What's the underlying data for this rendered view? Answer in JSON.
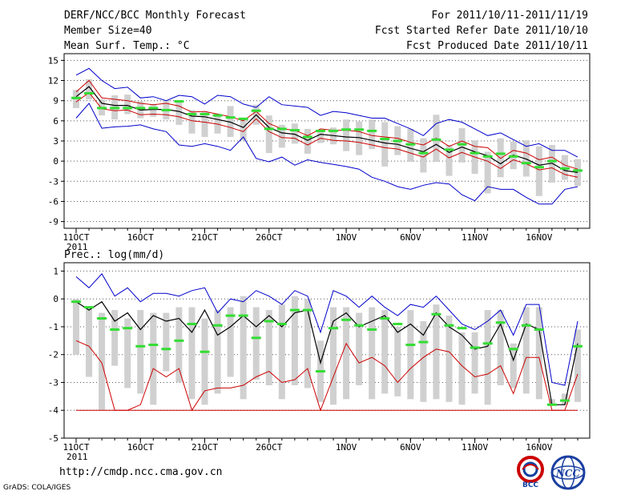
{
  "header": {
    "title": "DERF/NCC/BCC Monthly Forecast",
    "member_size": "Member Size=40",
    "period": "For 2011/10/11-2011/11/19",
    "start_date": "Fcst Started Refer Date 2011/10/10",
    "produced_date": "Fcst Produced Date 2011/10/11"
  },
  "footer": {
    "url": "http://cmdp.ncc.cma.gov.cn",
    "grads": "GrADS: COLA/IGES",
    "logo_left_text": "BCC",
    "logo_right_text": "NCC"
  },
  "colors": {
    "envelope": "#0000cc",
    "ensemble_mean": "#000000",
    "red_line": "#cc0000",
    "box": "#d0d0d0",
    "marker": "#33dd33",
    "grid": "#555555"
  },
  "chart_data": [
    {
      "type": "line",
      "title": "Mean Surf. Temp.: °C",
      "ylabel": "°C",
      "ylim": [
        -10,
        16
      ],
      "yticks": [
        15,
        12,
        9,
        6,
        3,
        0,
        -3,
        -6,
        -9
      ],
      "x_start_day": 1,
      "x_end_day": 40,
      "x_tick_labels": [
        {
          "day": 1,
          "label": "11OCT"
        },
        {
          "day": 6,
          "label": "16OCT"
        },
        {
          "day": 11,
          "label": "21OCT"
        },
        {
          "day": 16,
          "label": "26OCT"
        },
        {
          "day": 22,
          "label": "1NOV"
        },
        {
          "day": 27,
          "label": "6NOV"
        },
        {
          "day": 32,
          "label": "11NOV"
        },
        {
          "day": 37,
          "label": "16NOV"
        }
      ],
      "year_label": "2011",
      "series": [
        {
          "name": "max",
          "values": [
            12.8,
            13.8,
            12,
            10.8,
            11,
            9.4,
            9.6,
            9,
            9.8,
            9.6,
            8.5,
            9.8,
            9.6,
            8.5,
            8,
            9.6,
            8.4,
            8.2,
            8,
            6.8,
            7.4,
            7.2,
            6.8,
            6.4,
            6.4,
            5.6,
            4.8,
            3.8,
            5.6,
            6.2,
            5.8,
            4.8,
            3.8,
            4.2,
            3.2,
            2.2,
            2.6,
            1.6,
            1.6,
            0.6
          ]
        },
        {
          "name": "ens_mean_hi",
          "values": [
            10.3,
            12,
            9.4,
            9.2,
            9,
            8.6,
            8.4,
            8.6,
            8.2,
            7.3,
            7.4,
            7,
            6.6,
            6,
            7.4,
            5.6,
            4.8,
            4.6,
            3.8,
            4.8,
            4.6,
            4.6,
            4.4,
            3.8,
            3.6,
            3.4,
            2.8,
            2.4,
            3.4,
            2.2,
            3,
            2.2,
            2,
            0.4,
            1.6,
            1.2,
            0.2,
            0.6,
            -0.6,
            -1.2
          ]
        },
        {
          "name": "mean",
          "values": [
            9.6,
            11.1,
            8.6,
            8.3,
            8.3,
            7.6,
            7.7,
            7.7,
            7.4,
            6.7,
            6.6,
            6.2,
            5.8,
            5,
            6.9,
            5,
            4.2,
            4,
            3.1,
            4,
            3.8,
            3.6,
            3.5,
            3.1,
            2.7,
            2.5,
            1.9,
            1.4,
            2.5,
            1.3,
            2.1,
            1.4,
            0.8,
            -0.4,
            0.9,
            0.3,
            -0.6,
            -0.3,
            -1.4,
            -1.7
          ]
        },
        {
          "name": "ens_mean_lo",
          "values": [
            8.8,
            10.2,
            7.8,
            7.5,
            7.6,
            6.9,
            7,
            6.9,
            6.6,
            6,
            5.8,
            5.5,
            5,
            4.4,
            6.3,
            4.4,
            3.5,
            3.4,
            2.4,
            3.4,
            3.1,
            3,
            2.8,
            2.4,
            2,
            1.8,
            1.2,
            0.6,
            1.8,
            0.5,
            1.3,
            0.6,
            0,
            -1.1,
            0.2,
            -0.4,
            -1.3,
            -1,
            -2,
            -2.4
          ]
        },
        {
          "name": "min",
          "values": [
            6.4,
            8.6,
            4.9,
            5.1,
            5.2,
            5.4,
            4.8,
            4.4,
            2.4,
            2.2,
            2.6,
            2.2,
            1.6,
            3.6,
            0.4,
            -0.1,
            0.6,
            -0.6,
            0.2,
            -0.2,
            -0.5,
            -0.8,
            -1.2,
            -2.4,
            -3,
            -3.8,
            -4.2,
            -3.6,
            -3.2,
            -3.4,
            -5,
            -5.9,
            -3.8,
            -4.2,
            -4.2,
            -5.4,
            -6.4,
            -6.4,
            -4.2,
            -3.8
          ]
        }
      ],
      "boxes": [
        {
          "lo": 7.9,
          "hi": 10.6
        },
        {
          "lo": 9.2,
          "hi": 12.2
        },
        {
          "lo": 6.8,
          "hi": 9.2
        },
        {
          "lo": 6.2,
          "hi": 9.8
        },
        {
          "lo": 7,
          "hi": 9.9
        },
        {
          "lo": 6.4,
          "hi": 8.9
        },
        {
          "lo": 6.6,
          "hi": 8.5
        },
        {
          "lo": 6.2,
          "hi": 9.1
        },
        {
          "lo": 5.4,
          "hi": 8.9
        },
        {
          "lo": 4.1,
          "hi": 7.6
        },
        {
          "lo": 3.6,
          "hi": 7.4
        },
        {
          "lo": 4.1,
          "hi": 7.1
        },
        {
          "lo": 3.6,
          "hi": 8.2
        },
        {
          "lo": 3.1,
          "hi": 6.4
        },
        {
          "lo": 5.4,
          "hi": 8.4
        },
        {
          "lo": 1.2,
          "hi": 6.8
        },
        {
          "lo": 2,
          "hi": 5.4
        },
        {
          "lo": 2.6,
          "hi": 5.6
        },
        {
          "lo": 1.1,
          "hi": 4.8
        },
        {
          "lo": 2.7,
          "hi": 4.6
        },
        {
          "lo": 2.5,
          "hi": 5
        },
        {
          "lo": 1.5,
          "hi": 6.2
        },
        {
          "lo": 0.9,
          "hi": 5.9
        },
        {
          "lo": 1.8,
          "hi": 6.2
        },
        {
          "lo": -0.8,
          "hi": 5.8
        },
        {
          "lo": 0.9,
          "hi": 5.2
        },
        {
          "lo": -0.1,
          "hi": 4.8
        },
        {
          "lo": -1.7,
          "hi": 3.4
        },
        {
          "lo": -0.1,
          "hi": 6.9
        },
        {
          "lo": -2.2,
          "hi": 2.4
        },
        {
          "lo": -0.2,
          "hi": 4.9
        },
        {
          "lo": -1.9,
          "hi": 3.1
        },
        {
          "lo": -4.8,
          "hi": 1.4
        },
        {
          "lo": -2.4,
          "hi": 3.4
        },
        {
          "lo": -1.2,
          "hi": 2.9
        },
        {
          "lo": -2.3,
          "hi": 3.1
        },
        {
          "lo": -5.2,
          "hi": 2.2
        },
        {
          "lo": -3.2,
          "hi": 2.4
        },
        {
          "lo": -2.8,
          "hi": 0.9
        },
        {
          "lo": -3.7,
          "hi": 0.3
        }
      ],
      "markers": [
        9.4,
        10.1,
        7.9,
        7.9,
        7.9,
        7.9,
        7.9,
        7.6,
        8.9,
        7,
        7,
        6.8,
        6.5,
        6.3,
        7.5,
        4.8,
        4.8,
        4.6,
        3.6,
        4.5,
        4.5,
        4.7,
        4.7,
        4.5,
        3.3,
        3,
        2.5,
        1.2,
        3.2,
        1.7,
        2.5,
        1.2,
        0.7,
        1.1,
        0.7,
        -0.3,
        -0.9,
        0,
        -1.1,
        -1.4
      ]
    },
    {
      "type": "line",
      "title": "Prec.: log(mm/d)",
      "ylabel": "log(mm/d)",
      "ylim": [
        -5,
        1.3
      ],
      "yticks": [
        1,
        0,
        -1,
        -2,
        -3,
        -4,
        -5
      ],
      "x_start_day": 1,
      "x_end_day": 40,
      "x_tick_labels": [
        {
          "day": 1,
          "label": "11OCT"
        },
        {
          "day": 6,
          "label": "16OCT"
        },
        {
          "day": 11,
          "label": "21OCT"
        },
        {
          "day": 16,
          "label": "26OCT"
        },
        {
          "day": 22,
          "label": "1NOV"
        },
        {
          "day": 27,
          "label": "6NOV"
        },
        {
          "day": 32,
          "label": "11NOV"
        },
        {
          "day": 37,
          "label": "16NOV"
        }
      ],
      "year_label": "2011",
      "series": [
        {
          "name": "max",
          "values": [
            0.8,
            0.4,
            0.9,
            0.1,
            0.4,
            -0.1,
            0.2,
            0.2,
            0.1,
            0.3,
            0.4,
            -0.5,
            0,
            -0.1,
            0.3,
            0.1,
            -0.2,
            0.3,
            0.1,
            -1.2,
            0.3,
            0.1,
            -0.3,
            0.1,
            -0.3,
            -0.6,
            -0.2,
            -0.3,
            0.1,
            -0.4,
            -0.9,
            -1.1,
            -0.8,
            -0.4,
            -1.3,
            -0.2,
            -0.2,
            -3,
            -3.1,
            -0.8
          ]
        },
        {
          "name": "mean",
          "values": [
            -0.1,
            -0.4,
            -0.1,
            -0.8,
            -0.5,
            -1.1,
            -0.6,
            -0.8,
            -0.7,
            -1.2,
            -0.4,
            -1.3,
            -1,
            -0.6,
            -1,
            -0.6,
            -1,
            -0.5,
            -0.4,
            -2.3,
            -0.8,
            -0.5,
            -1,
            -0.8,
            -0.6,
            -1.2,
            -0.9,
            -1.3,
            -0.5,
            -1,
            -1.3,
            -1.8,
            -1.7,
            -0.9,
            -2.2,
            -0.9,
            -1.1,
            -3.8,
            -3.8,
            -1.6
          ]
        },
        {
          "name": "red",
          "values": [
            -1.5,
            -1.7,
            -2.3,
            -4,
            -4,
            -3.8,
            -2.5,
            -2.8,
            -2.5,
            -4,
            -3.3,
            -3.2,
            -3.2,
            -3.1,
            -2.8,
            -2.6,
            -3,
            -2.9,
            -2.5,
            -4,
            -2.8,
            -1.6,
            -2.3,
            -2.1,
            -2.4,
            -3,
            -2.5,
            -2.1,
            -1.8,
            -1.9,
            -2.4,
            -2.8,
            -2.7,
            -2.4,
            -3.4,
            -2.1,
            -2.1,
            -4,
            -4,
            -2.7
          ]
        },
        {
          "name": "floor",
          "values": [
            -4,
            -4,
            -4,
            -4,
            -4,
            -4,
            -4,
            -4,
            -4,
            -4,
            -4,
            -4,
            -4,
            -4,
            -4,
            -4,
            -4,
            -4,
            -4,
            -4,
            -4,
            -4,
            -4,
            -4,
            -4,
            -4,
            -4,
            -4,
            -4,
            -4,
            -4,
            -4,
            -4,
            -4,
            -4,
            -4,
            -4,
            -4,
            -4,
            -4
          ]
        }
      ],
      "boxes": [
        {
          "lo": -2,
          "hi": 0
        },
        {
          "lo": -2.8,
          "hi": -0.3
        },
        {
          "lo": -4,
          "hi": -0.5
        },
        {
          "lo": -2.4,
          "hi": -0.4
        },
        {
          "lo": -3.2,
          "hi": -0.7
        },
        {
          "lo": -3.4,
          "hi": -0.4
        },
        {
          "lo": -3.8,
          "hi": -0.5
        },
        {
          "lo": -2.6,
          "hi": -0.5
        },
        {
          "lo": -3,
          "hi": -0.3
        },
        {
          "lo": -3.6,
          "hi": -0.3
        },
        {
          "lo": -3.8,
          "hi": -0.7
        },
        {
          "lo": -3.4,
          "hi": -0.4
        },
        {
          "lo": -2.8,
          "hi": -0.3
        },
        {
          "lo": -3.6,
          "hi": 0.1
        },
        {
          "lo": -2.9,
          "hi": -0.3
        },
        {
          "lo": -3.1,
          "hi": -0.4
        },
        {
          "lo": -3.6,
          "hi": -0.2
        },
        {
          "lo": -3.1,
          "hi": 0.1
        },
        {
          "lo": -3.2,
          "hi": 0
        },
        {
          "lo": -3.7,
          "hi": -1.5
        },
        {
          "lo": -3.8,
          "hi": -0.3
        },
        {
          "lo": -3.6,
          "hi": -0.3
        },
        {
          "lo": -3.1,
          "hi": -0.5
        },
        {
          "lo": -3.6,
          "hi": -0.3
        },
        {
          "lo": -3.4,
          "hi": -0.4
        },
        {
          "lo": -3.5,
          "hi": -1
        },
        {
          "lo": -3.6,
          "hi": -0.4
        },
        {
          "lo": -3.7,
          "hi": -0.8
        },
        {
          "lo": -3.6,
          "hi": -0.2
        },
        {
          "lo": -3.7,
          "hi": -0.6
        },
        {
          "lo": -3.8,
          "hi": -1.2
        },
        {
          "lo": -3.4,
          "hi": -1.2
        },
        {
          "lo": -3.8,
          "hi": -0.4
        },
        {
          "lo": -3.1,
          "hi": -0.4
        },
        {
          "lo": -3.2,
          "hi": -1.6
        },
        {
          "lo": -3.4,
          "hi": -0.3
        },
        {
          "lo": -3.6,
          "hi": -0.3
        },
        {
          "lo": -3.8,
          "hi": -3.6
        },
        {
          "lo": -3.8,
          "hi": -3.4
        },
        {
          "lo": -3.7,
          "hi": -1.1
        }
      ],
      "markers": [
        -0.1,
        -0.3,
        -0.7,
        -1.1,
        -1.05,
        -1.7,
        -1.65,
        -1.8,
        -1.5,
        -0.9,
        -1.9,
        -0.95,
        -0.6,
        -0.6,
        -1.4,
        -0.8,
        -0.9,
        -0.4,
        -0.4,
        -2.6,
        -1.05,
        -0.75,
        -0.95,
        -1.1,
        -0.7,
        -0.9,
        -1.65,
        -1.55,
        -0.55,
        -0.95,
        -1.05,
        -1.75,
        -1.6,
        -0.85,
        -1.8,
        -0.95,
        -1.1,
        -3.8,
        -3.65,
        -1.7
      ]
    }
  ]
}
